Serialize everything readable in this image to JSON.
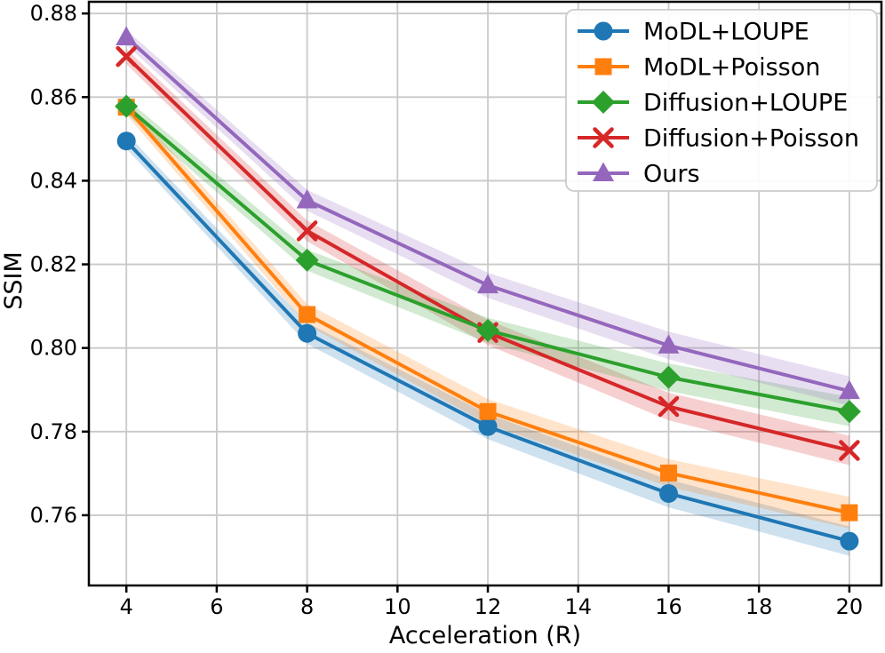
{
  "figure": {
    "background": "#ffffff",
    "grid_color": "#c9c9c9",
    "spine_color": "#000000",
    "tick_color": "#000000",
    "legend_border_color": "#cccccc",
    "legend_background": "#ffffff"
  },
  "chart_data": {
    "type": "line",
    "title": "",
    "xlabel": "Acceleration (R)",
    "ylabel": "SSIM",
    "x": [
      4,
      8,
      12,
      16,
      20
    ],
    "x_ticks": [
      4,
      6,
      8,
      10,
      12,
      14,
      16,
      18,
      20
    ],
    "y_ticks": [
      0.76,
      0.78,
      0.8,
      0.82,
      0.84,
      0.86,
      0.88
    ],
    "xlim": [
      3.17,
      20.71
    ],
    "ylim": [
      0.7432,
      0.8828
    ],
    "grid": true,
    "legend_position": "upper right",
    "band_opacity": 0.22,
    "series": [
      {
        "name": "MoDL+LOUPE",
        "color": "#1f77b4",
        "marker": "circle",
        "values": [
          0.8495,
          0.8035,
          0.7812,
          0.7652,
          0.7538
        ],
        "band": [
          0.0018,
          0.0025,
          0.003,
          0.0033,
          0.0035
        ]
      },
      {
        "name": "MoDL+Poisson",
        "color": "#ff7f0e",
        "marker": "square",
        "values": [
          0.8576,
          0.808,
          0.7848,
          0.7701,
          0.7606
        ],
        "band": [
          0.0018,
          0.0025,
          0.003,
          0.0033,
          0.0038
        ]
      },
      {
        "name": "Diffusion+LOUPE",
        "color": "#2ca02c",
        "marker": "diamond",
        "values": [
          0.8578,
          0.821,
          0.8042,
          0.793,
          0.7848
        ],
        "band": [
          0.0018,
          0.0025,
          0.003,
          0.0033,
          0.0035
        ]
      },
      {
        "name": "Diffusion+Poisson",
        "color": "#d62728",
        "marker": "x",
        "values": [
          0.8697,
          0.828,
          0.8037,
          0.786,
          0.7755
        ],
        "band": [
          0.0018,
          0.0025,
          0.003,
          0.0033,
          0.0035
        ]
      },
      {
        "name": "Ours",
        "color": "#9467bd",
        "marker": "triangle",
        "values": [
          0.8743,
          0.8353,
          0.815,
          0.8006,
          0.7897
        ],
        "band": [
          0.0018,
          0.0025,
          0.003,
          0.0033,
          0.0035
        ]
      }
    ]
  }
}
